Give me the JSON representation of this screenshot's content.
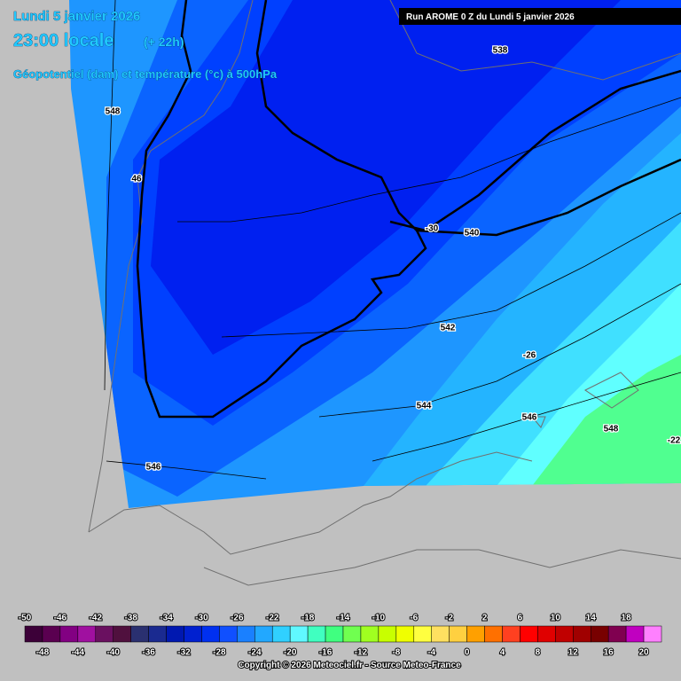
{
  "header": {
    "date": "Lundi 5 janvier 2026",
    "time": "23:00 locale",
    "lead": "(+ 22h)",
    "subtitle": "Géopotentiel (dam) et température (°c) à 500hPa",
    "run": "Run AROME 0 Z du Lundi 5 janvier 2026"
  },
  "contour_labels": [
    "538",
    "548",
    "46",
    "-30",
    "540",
    "542",
    "-26",
    "544",
    "546",
    "548",
    "-22",
    "546"
  ],
  "scale": {
    "top_labels": [
      -50,
      -46,
      -42,
      -38,
      -34,
      -30,
      -26,
      -22,
      -18,
      -14,
      -10,
      -6,
      -2,
      2,
      6,
      10,
      14,
      18
    ],
    "bottom_labels": [
      -48,
      -44,
      -40,
      -36,
      -32,
      -28,
      -24,
      -20,
      -16,
      -12,
      -8,
      -4,
      0,
      4,
      8,
      12,
      16,
      20
    ],
    "colors": [
      "#3c0038",
      "#5a0050",
      "#820082",
      "#a010a0",
      "#6a1060",
      "#50103e",
      "#2a3070",
      "#1a2a90",
      "#0018b0",
      "#0020d0",
      "#0030f0",
      "#1050ff",
      "#1a80ff",
      "#22a8ff",
      "#30d0ff",
      "#60f8ff",
      "#40ffc0",
      "#40ff80",
      "#70ff50",
      "#a0ff20",
      "#c8ff00",
      "#f0ff00",
      "#ffff40",
      "#ffe060",
      "#ffd040",
      "#ffa000",
      "#ff7000",
      "#ff4020",
      "#ff0000",
      "#e00000",
      "#c00000",
      "#a00000",
      "#780000",
      "#800050",
      "#c000c0",
      "#ff80ff"
    ]
  },
  "copyright": "Copyright © 2026 Meteociel.fr - Source Meteo-France"
}
